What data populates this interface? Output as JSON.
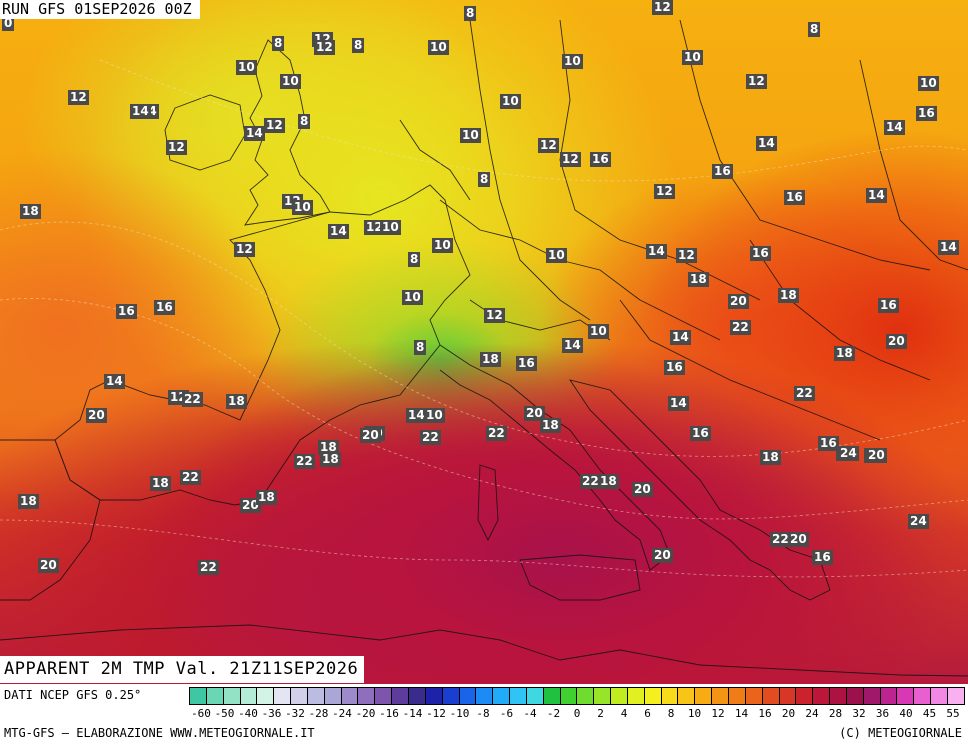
{
  "header": {
    "run": "RUN GFS 01SEP2026 00Z"
  },
  "product": {
    "title": "APPARENT 2M TMP Val. 21Z11SEP2026"
  },
  "footer": {
    "source": "DATI NCEP GFS 0.25°",
    "credit_left": "MTG-GFS — ELABORAZIONE WWW.METEOGIORNALE.IT",
    "credit_right": "(C) METEOGIORNALE"
  },
  "scale": {
    "colors": [
      "#3fc7a3",
      "#6ad6b3",
      "#93e2c6",
      "#b5ecd8",
      "#d2f3e6",
      "#e4e4f2",
      "#d0d0ea",
      "#bcbce2",
      "#aaa6d8",
      "#9c8acb",
      "#8f6ebd",
      "#7d55ad",
      "#5e3c9c",
      "#3a2c8c",
      "#1e22a8",
      "#1a3fd0",
      "#1a64ea",
      "#1e8af4",
      "#20acf8",
      "#30c4f4",
      "#40d8e0",
      "#20c040",
      "#40d030",
      "#70dc30",
      "#98e428",
      "#c0ec20",
      "#e0f020",
      "#f4f020",
      "#f8dc1c",
      "#f8c418",
      "#f8ac14",
      "#f49414",
      "#f07c18",
      "#ea641c",
      "#e24c20",
      "#d83626",
      "#cc222e",
      "#bc1638",
      "#ac1242",
      "#9c104c",
      "#a0186a",
      "#bc2490",
      "#d838b4",
      "#e860d0",
      "#f088e4",
      "#f8b0f0"
    ],
    "ticks": [
      "-60",
      "-50",
      "-40",
      "-36",
      "-32",
      "-28",
      "-24",
      "-20",
      "-16",
      "-14",
      "-12",
      "-10",
      "-8",
      "-6",
      "-4",
      "-2",
      "0",
      "2",
      "4",
      "6",
      "8",
      "10",
      "12",
      "14",
      "16",
      "20",
      "24",
      "28",
      "32",
      "36",
      "40",
      "45",
      "55"
    ]
  },
  "temperature_labels": [
    {
      "v": "0"
    },
    {
      "v": "8"
    },
    {
      "v": "12"
    },
    {
      "v": "8"
    },
    {
      "v": "12"
    },
    {
      "v": "8"
    },
    {
      "v": "12"
    },
    {
      "v": "10"
    },
    {
      "v": "8"
    },
    {
      "v": "10"
    },
    {
      "v": "10"
    },
    {
      "v": "10"
    },
    {
      "v": "10"
    },
    {
      "v": "14"
    },
    {
      "v": "12"
    },
    {
      "v": "10"
    },
    {
      "v": "14"
    },
    {
      "v": "8"
    },
    {
      "v": "10"
    },
    {
      "v": "12"
    },
    {
      "v": "12"
    },
    {
      "v": "14"
    },
    {
      "v": "12"
    },
    {
      "v": "14"
    },
    {
      "v": "16"
    },
    {
      "v": "10"
    },
    {
      "v": "12"
    },
    {
      "v": "12"
    },
    {
      "v": "16"
    },
    {
      "v": "8"
    },
    {
      "v": "14"
    },
    {
      "v": "16"
    },
    {
      "v": "18"
    },
    {
      "v": "12"
    },
    {
      "v": "12"
    },
    {
      "v": "10"
    },
    {
      "v": "16"
    },
    {
      "v": "14"
    },
    {
      "v": "12"
    },
    {
      "v": "10"
    },
    {
      "v": "8"
    },
    {
      "v": "10"
    },
    {
      "v": "12"
    },
    {
      "v": "10"
    },
    {
      "v": "14"
    },
    {
      "v": "12"
    },
    {
      "v": "16"
    },
    {
      "v": "14"
    },
    {
      "v": "14"
    },
    {
      "v": "10"
    },
    {
      "v": "12"
    },
    {
      "v": "18"
    },
    {
      "v": "16"
    },
    {
      "v": "16"
    },
    {
      "v": "20"
    },
    {
      "v": "18"
    },
    {
      "v": "16"
    },
    {
      "v": "10"
    },
    {
      "v": "8"
    },
    {
      "v": "14"
    },
    {
      "v": "16"
    },
    {
      "v": "22"
    },
    {
      "v": "20"
    },
    {
      "v": "14"
    },
    {
      "v": "18"
    },
    {
      "v": "16"
    },
    {
      "v": "14"
    },
    {
      "v": "16"
    },
    {
      "v": "18"
    },
    {
      "v": "12"
    },
    {
      "v": "20"
    },
    {
      "v": "22"
    },
    {
      "v": "20"
    },
    {
      "v": "18"
    },
    {
      "v": "14"
    },
    {
      "v": "18"
    },
    {
      "v": "20"
    },
    {
      "v": "18"
    },
    {
      "v": "14"
    },
    {
      "v": "10"
    },
    {
      "v": "22"
    },
    {
      "v": "22"
    },
    {
      "v": "20"
    },
    {
      "v": "18"
    },
    {
      "v": "16"
    },
    {
      "v": "18"
    },
    {
      "v": "16"
    },
    {
      "v": "22"
    },
    {
      "v": "18"
    },
    {
      "v": "24"
    },
    {
      "v": "20"
    },
    {
      "v": "18"
    },
    {
      "v": "20"
    },
    {
      "v": "22"
    },
    {
      "v": "20"
    },
    {
      "v": "18"
    },
    {
      "v": "22"
    },
    {
      "v": "18"
    },
    {
      "v": "22"
    },
    {
      "v": "20"
    },
    {
      "v": "16"
    },
    {
      "v": "20"
    },
    {
      "v": "24"
    },
    {
      "v": "22"
    },
    {
      "v": "20"
    },
    {
      "v": "24"
    },
    {
      "v": "22"
    },
    {
      "v": "20"
    }
  ]
}
